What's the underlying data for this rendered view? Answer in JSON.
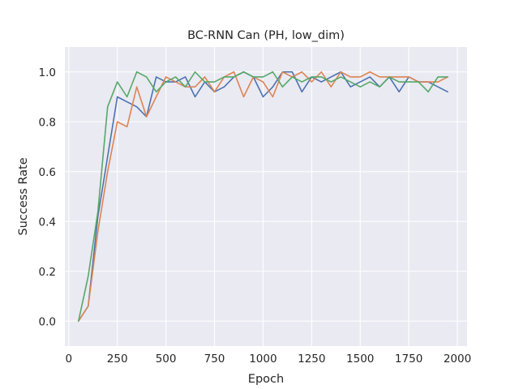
{
  "chart_data": {
    "type": "line",
    "title": "BC-RNN Can (PH, low_dim)",
    "xlabel": "Epoch",
    "ylabel": "Success Rate",
    "xlim": [
      -20,
      2050
    ],
    "ylim": [
      -0.1,
      1.1
    ],
    "xticks": [
      0,
      250,
      500,
      750,
      1000,
      1250,
      1500,
      1750,
      2000
    ],
    "yticks": [
      0.0,
      0.2,
      0.4,
      0.6,
      0.8,
      1.0
    ],
    "xtick_labels": [
      "0",
      "250",
      "500",
      "750",
      "1000",
      "1250",
      "1500",
      "1750",
      "2000"
    ],
    "ytick_labels": [
      "0.0",
      "0.2",
      "0.4",
      "0.6",
      "0.8",
      "1.0"
    ],
    "grid": true,
    "background": "#eaeaf2",
    "x": [
      50,
      100,
      150,
      200,
      250,
      300,
      350,
      400,
      450,
      500,
      550,
      600,
      650,
      700,
      750,
      800,
      850,
      900,
      950,
      1000,
      1050,
      1100,
      1150,
      1200,
      1250,
      1300,
      1350,
      1400,
      1450,
      1500,
      1550,
      1600,
      1650,
      1700,
      1750,
      1800,
      1850,
      1900,
      1950
    ],
    "series": [
      {
        "color": "#4c72b0",
        "values": [
          0.0,
          0.06,
          0.42,
          0.66,
          0.9,
          0.88,
          0.86,
          0.82,
          0.98,
          0.96,
          0.96,
          0.98,
          0.9,
          0.96,
          0.92,
          0.94,
          0.98,
          1.0,
          0.98,
          0.9,
          0.94,
          1.0,
          1.0,
          0.92,
          0.98,
          0.96,
          0.98,
          1.0,
          0.94,
          0.96,
          0.98,
          0.94,
          0.98,
          0.92,
          0.98,
          0.96,
          0.96,
          0.94,
          0.92
        ]
      },
      {
        "color": "#dd8452",
        "values": [
          0.0,
          0.06,
          0.36,
          0.6,
          0.8,
          0.78,
          0.94,
          0.82,
          0.9,
          0.98,
          0.96,
          0.94,
          0.94,
          0.98,
          0.92,
          0.98,
          1.0,
          0.9,
          0.98,
          0.96,
          0.9,
          1.0,
          0.98,
          1.0,
          0.96,
          1.0,
          0.94,
          1.0,
          0.98,
          0.98,
          1.0,
          0.98,
          0.98,
          0.98,
          0.98,
          0.96,
          0.96,
          0.96,
          0.98
        ]
      },
      {
        "color": "#55a868",
        "values": [
          0.0,
          0.18,
          0.44,
          0.86,
          0.96,
          0.9,
          1.0,
          0.98,
          0.92,
          0.96,
          0.98,
          0.94,
          1.0,
          0.96,
          0.96,
          0.98,
          0.98,
          1.0,
          0.98,
          0.98,
          1.0,
          0.94,
          0.98,
          0.96,
          0.98,
          0.98,
          0.96,
          0.98,
          0.96,
          0.94,
          0.96,
          0.94,
          0.98,
          0.96,
          0.96,
          0.96,
          0.92,
          0.98,
          0.98
        ]
      }
    ]
  }
}
